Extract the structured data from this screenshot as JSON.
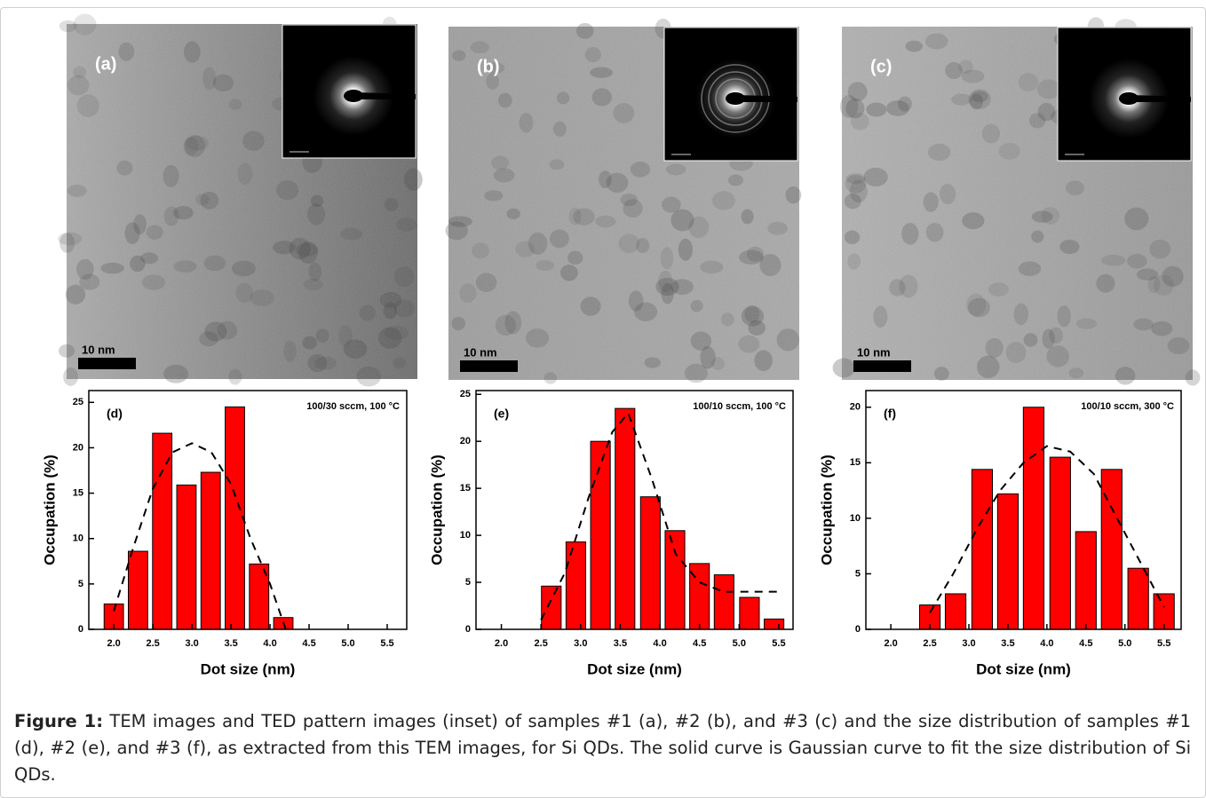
{
  "chart_data": [
    {
      "type": "bar",
      "panel_label": "(d)",
      "annotation": "100/30 sccm, 100 °C",
      "xlabel": "Dot size (nm)",
      "ylabel": "Occupation (%)",
      "x": [
        2.0,
        2.31,
        2.62,
        2.93,
        3.24,
        3.55,
        3.86,
        4.17
      ],
      "values": [
        2.8,
        8.6,
        21.6,
        15.9,
        17.3,
        24.5,
        7.2,
        1.3
      ],
      "color": "#ff0000",
      "fit": {
        "x": [
          2.0,
          2.25,
          2.5,
          2.75,
          3.0,
          3.25,
          3.5,
          3.75,
          4.0,
          4.2
        ],
        "values": [
          2,
          9,
          15.5,
          19.5,
          20.5,
          19.5,
          16,
          10,
          5,
          0
        ]
      },
      "xlim": [
        1.68,
        5.75
      ],
      "ylim": [
        0,
        26.3
      ],
      "xticks": [
        {
          "value": 2,
          "label": "2.0"
        },
        {
          "value": 2.5,
          "label": "2.5"
        },
        {
          "value": 3,
          "label": "3.0"
        },
        {
          "value": 3.5,
          "label": "3.5"
        },
        {
          "value": 4,
          "label": "4.0"
        },
        {
          "value": 4.5,
          "label": "4.5"
        },
        {
          "value": 5,
          "label": "5.0"
        },
        {
          "value": 5.5,
          "label": "5.5"
        }
      ],
      "yticks": [
        0,
        5,
        10,
        15,
        20,
        25
      ]
    },
    {
      "type": "bar",
      "panel_label": "(e)",
      "annotation": "100/10 sccm, 100 °C",
      "xlabel": "Dot size (nm)",
      "ylabel": "Occupation (%)",
      "x": [
        2.63,
        2.94,
        3.25,
        3.56,
        3.88,
        4.19,
        4.5,
        4.81,
        5.13,
        5.44
      ],
      "values": [
        4.6,
        9.3,
        20,
        23.5,
        14.1,
        10.5,
        7,
        5.8,
        3.4,
        1.1
      ],
      "color": "#ff0000",
      "fit": {
        "x": [
          2.5,
          2.8,
          3.1,
          3.4,
          3.6,
          3.9,
          4.2,
          4.5,
          4.8,
          5.1,
          5.5
        ],
        "values": [
          1,
          6,
          14,
          21,
          23,
          16,
          8,
          5,
          4,
          4,
          4
        ]
      },
      "xlim": [
        1.68,
        5.68
      ],
      "ylim": [
        0,
        25.4
      ],
      "xticks": [
        {
          "value": 2,
          "label": "2.0"
        },
        {
          "value": 2.5,
          "label": "2.5"
        },
        {
          "value": 3,
          "label": "3.0"
        },
        {
          "value": 3.5,
          "label": "3.5"
        },
        {
          "value": 4,
          "label": "4.0"
        },
        {
          "value": 4.5,
          "label": "4.5"
        },
        {
          "value": 5,
          "label": "5.0"
        },
        {
          "value": 5.5,
          "label": "5.5"
        }
      ],
      "yticks": [
        0,
        5,
        10,
        15,
        20,
        25
      ]
    },
    {
      "type": "bar",
      "panel_label": "(f)",
      "annotation": "100/10 sccm, 300 °C",
      "xlabel": "Dot size (nm)",
      "ylabel": "Occupation (%)",
      "x": [
        2.5,
        2.83,
        3.17,
        3.5,
        3.83,
        4.17,
        4.5,
        4.83,
        5.17,
        5.5
      ],
      "values": [
        2.2,
        3.2,
        14.4,
        12.2,
        20,
        15.5,
        8.8,
        14.4,
        5.5,
        3.2
      ],
      "color": "#ff0000",
      "fit": {
        "x": [
          2.5,
          2.8,
          3.1,
          3.4,
          3.7,
          4.0,
          4.3,
          4.6,
          4.9,
          5.2,
          5.5
        ],
        "values": [
          1.5,
          5,
          9,
          12.5,
          15,
          16.5,
          16,
          14,
          10,
          6,
          2
        ]
      },
      "xlim": [
        1.68,
        5.72
      ],
      "ylim": [
        0,
        21.5
      ],
      "xticks": [
        {
          "value": 2,
          "label": "2.0"
        },
        {
          "value": 2.5,
          "label": "2.5"
        },
        {
          "value": 3,
          "label": "3.0"
        },
        {
          "value": 3.5,
          "label": "3.5"
        },
        {
          "value": 4,
          "label": "4.0"
        },
        {
          "value": 4.5,
          "label": "4.5"
        },
        {
          "value": 5,
          "label": "5.0"
        },
        {
          "value": 5.5,
          "label": "5.5"
        }
      ],
      "yticks": [
        0,
        5,
        10,
        15,
        20
      ]
    }
  ],
  "images": [
    {
      "label": "(a)",
      "scale_bar": "10 nm"
    },
    {
      "label": "(b)",
      "scale_bar": "10 nm"
    },
    {
      "label": "(c)",
      "scale_bar": "10 nm"
    }
  ],
  "caption": {
    "label": "Figure 1:",
    "text": "TEM images and TED pattern images (inset) of samples #1 (a), #2 (b), and #3 (c) and the size distribution of samples #1 (d), #2 (e), and #3 (f), as extracted from this TEM images, for Si QDs. The solid curve is Gaussian curve to fit the size distribution of Si QDs."
  }
}
